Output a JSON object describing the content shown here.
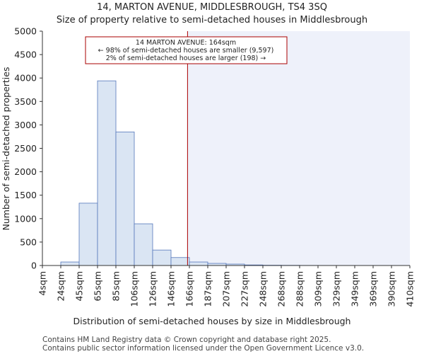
{
  "chart_data": {
    "type": "bar",
    "title": "14, MARTON AVENUE, MIDDLESBROUGH, TS4 3SQ",
    "subtitle": "Size of property relative to semi-detached houses in Middlesbrough",
    "xlabel": "Distribution of semi-detached houses by size in Middlesbrough",
    "ylabel": "Number of semi-detached properties",
    "x_tick_labels": [
      "4sqm",
      "24sqm",
      "45sqm",
      "65sqm",
      "85sqm",
      "106sqm",
      "126sqm",
      "146sqm",
      "166sqm",
      "187sqm",
      "207sqm",
      "227sqm",
      "248sqm",
      "268sqm",
      "288sqm",
      "309sqm",
      "329sqm",
      "349sqm",
      "369sqm",
      "390sqm",
      "410sqm"
    ],
    "values": [
      0,
      75,
      1330,
      3940,
      2850,
      890,
      330,
      170,
      75,
      45,
      30,
      12,
      6,
      4,
      2,
      1,
      1,
      1,
      0,
      0
    ],
    "ylim": [
      0,
      5000
    ],
    "yticks": [
      0,
      500,
      1000,
      1500,
      2000,
      2500,
      3000,
      3500,
      4000,
      4500,
      5000
    ],
    "property_size_sqm": 164,
    "property_bin_position": 7.9,
    "annotation": {
      "line1": "14 MARTON AVENUE: 164sqm",
      "line2": "← 98% of semi-detached houses are smaller (9,597)",
      "line3": "2% of semi-detached houses are larger (198) →"
    },
    "colors": {
      "bar_fill": "#dae5f3",
      "bar_edge": "#5577bb",
      "highlight_region": "#eef1fa",
      "marker_line": "#aa0000",
      "annotation_border": "#aa0000"
    }
  },
  "footer": {
    "line1": "Contains HM Land Registry data © Crown copyright and database right 2025.",
    "line2": "Contains public sector information licensed under the Open Government Licence v3.0."
  }
}
